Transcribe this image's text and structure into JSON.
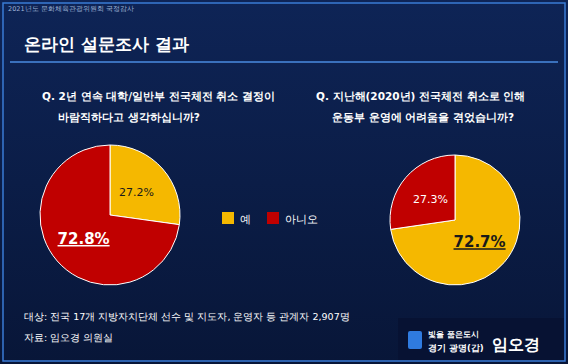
{
  "header": {
    "note": "2021년도 문화체육관광위원회 국정감사",
    "title": "온라인 설문조사 결과"
  },
  "legend": {
    "items": [
      {
        "label": "예",
        "color": "#f5b800"
      },
      {
        "label": "아니오",
        "color": "#c00000"
      }
    ]
  },
  "chart_data": [
    {
      "type": "pie",
      "title": [
        "Q. 2년 연속 대학/일반부 전국체전 취소 결정이",
        "바람직하다고 생각하십니까?"
      ],
      "values": [
        27.2,
        72.8
      ],
      "value_labels": [
        "27.2%",
        "72.8%"
      ],
      "colors": [
        "#f5b800",
        "#c00000"
      ],
      "data_labels": true
    },
    {
      "type": "pie",
      "title": [
        "Q. 지난해(2020년) 전국체전 취소로 인해",
        "운동부 운영에 어려움을 겪었습니까?"
      ],
      "values": [
        72.7,
        27.3
      ],
      "value_labels": [
        "72.7%",
        "27.3%"
      ],
      "colors": [
        "#f5b800",
        "#c00000"
      ],
      "data_labels": true
    }
  ],
  "footer": {
    "lines": [
      "대상: 전국 17개 지방자치단체 선수 및 지도자, 운영자 등 관계자 2,907명",
      "자료: 임오경 의원실"
    ]
  },
  "badge": {
    "slogan": "빛을 품은도시",
    "district": "경기 광명(갑)",
    "name": "임오경"
  }
}
